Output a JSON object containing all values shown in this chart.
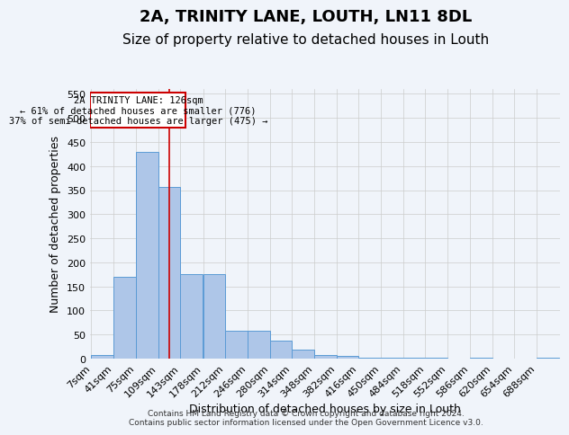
{
  "title": "2A, TRINITY LANE, LOUTH, LN11 8DL",
  "subtitle": "Size of property relative to detached houses in Louth",
  "xlabel": "Distribution of detached houses by size in Louth",
  "ylabel": "Number of detached properties",
  "footer_line1": "Contains HM Land Registry data © Crown copyright and database right 2024.",
  "footer_line2": "Contains public sector information licensed under the Open Government Licence v3.0.",
  "bar_edges": [
    7,
    41,
    75,
    109,
    143,
    178,
    212,
    246,
    280,
    314,
    348,
    382,
    416,
    450,
    484,
    518,
    552,
    586,
    620,
    654,
    688
  ],
  "bar_heights": [
    8,
    170,
    430,
    356,
    175,
    175,
    57,
    57,
    38,
    18,
    8,
    5,
    1,
    1,
    1,
    1,
    0,
    1,
    0,
    0,
    2
  ],
  "bar_color": "#aec6e8",
  "bar_edge_color": "#5b9bd5",
  "grid_color": "#cccccc",
  "property_size": 126,
  "property_line_color": "#cc0000",
  "annotation_text": "2A TRINITY LANE: 126sqm\n← 61% of detached houses are smaller (776)\n37% of semi-detached houses are larger (475) →",
  "annotation_box_color": "#cc0000",
  "ylim": [
    0,
    560
  ],
  "yticks": [
    0,
    50,
    100,
    150,
    200,
    250,
    300,
    350,
    400,
    450,
    500,
    550
  ],
  "background_color": "#f0f4fa",
  "plot_bg_color": "#f0f4fa",
  "title_fontsize": 13,
  "subtitle_fontsize": 11,
  "tick_label_fontsize": 8
}
